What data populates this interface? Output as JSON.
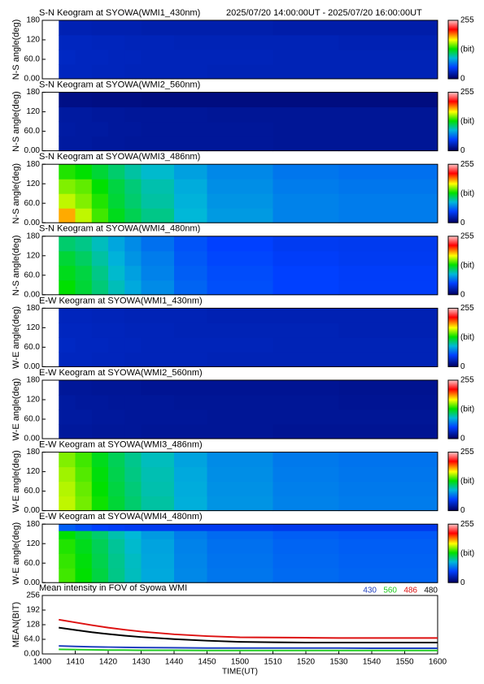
{
  "chart_data": [
    {
      "type": "heatmap",
      "title": "S-N Keogram at SYOWA(WMI1_430nm)",
      "subtitle": "2025/07/20 14:00:00UT - 2025/07/20 16:00:00UT",
      "ylabel": "N-S angle(deg)",
      "xlim": [
        1400,
        1600
      ],
      "ylim": [
        0,
        180
      ],
      "yticks": [
        {
          "value": 0,
          "label": "0.00"
        },
        {
          "value": 60,
          "label": "60.0"
        },
        120,
        180
      ],
      "x_edges": [
        1405,
        1410,
        1415,
        1420,
        1425,
        1430,
        1440,
        1450,
        1510,
        1530,
        1600
      ],
      "y_edges": [
        0,
        45,
        90,
        135,
        180
      ],
      "z": [
        [
          30,
          30,
          29,
          29,
          28,
          28,
          28,
          27,
          27,
          27
        ],
        [
          31,
          30,
          30,
          29,
          29,
          28,
          28,
          28,
          27,
          27
        ],
        [
          30,
          30,
          29,
          29,
          28,
          28,
          27,
          27,
          27,
          26
        ],
        [
          26,
          26,
          25,
          25,
          25,
          24,
          24,
          24,
          23,
          23
        ]
      ],
      "colorbar": {
        "ticks": [
          0,
          255
        ],
        "label": "(bit)"
      }
    },
    {
      "type": "heatmap",
      "title": "S-N Keogram at SYOWA(WMI2_560nm)",
      "ylabel": "N-S angle(deg)",
      "xlim": [
        1400,
        1600
      ],
      "ylim": [
        0,
        180
      ],
      "yticks": [
        {
          "value": 0,
          "label": "0.00"
        },
        {
          "value": 60,
          "label": "60.0"
        },
        120,
        180
      ],
      "x_edges": [
        1405,
        1410,
        1415,
        1420,
        1425,
        1430,
        1440,
        1450,
        1510,
        1530,
        1600
      ],
      "y_edges": [
        0,
        45,
        90,
        135,
        180
      ],
      "z": [
        [
          20,
          20,
          19,
          19,
          18,
          18,
          18,
          18,
          17,
          17
        ],
        [
          21,
          20,
          20,
          19,
          19,
          18,
          18,
          18,
          17,
          17
        ],
        [
          20,
          20,
          19,
          19,
          18,
          18,
          18,
          17,
          17,
          17
        ],
        [
          12,
          12,
          11,
          11,
          11,
          10,
          10,
          10,
          10,
          10
        ]
      ],
      "colorbar": {
        "ticks": [
          0,
          255
        ],
        "label": "(bit)"
      }
    },
    {
      "type": "heatmap",
      "title": "S-N Keogram at SYOWA(WMI3_486nm)",
      "ylabel": "N-S angle(deg)",
      "xlim": [
        1400,
        1600
      ],
      "ylim": [
        0,
        180
      ],
      "yticks": [
        {
          "value": 0,
          "label": "0.00"
        },
        {
          "value": 60,
          "label": "60.0"
        },
        120,
        180
      ],
      "x_edges": [
        1405,
        1410,
        1415,
        1420,
        1425,
        1430,
        1440,
        1450,
        1510,
        1530,
        1600
      ],
      "y_edges": [
        0,
        45,
        90,
        135,
        180
      ],
      "z": [
        [
          185,
          160,
          140,
          125,
          115,
          105,
          90,
          80,
          72,
          70
        ],
        [
          160,
          150,
          135,
          120,
          110,
          100,
          88,
          78,
          72,
          70
        ],
        [
          150,
          145,
          130,
          118,
          108,
          98,
          86,
          76,
          70,
          68
        ],
        [
          135,
          130,
          120,
          110,
          100,
          92,
          82,
          74,
          68,
          66
        ]
      ],
      "colorbar": {
        "ticks": [
          0,
          255
        ],
        "label": "(bit)"
      }
    },
    {
      "type": "heatmap",
      "title": "S-N Keogram at SYOWA(WMI4_480nm)",
      "ylabel": "N-S angle(deg)",
      "xlim": [
        1400,
        1600
      ],
      "ylim": [
        0,
        180
      ],
      "yticks": [
        {
          "value": 0,
          "label": "0.00"
        },
        {
          "value": 60,
          "label": "60.0"
        },
        120,
        180
      ],
      "x_edges": [
        1405,
        1410,
        1415,
        1420,
        1425,
        1430,
        1440,
        1450,
        1510,
        1530,
        1600
      ],
      "y_edges": [
        0,
        45,
        90,
        135,
        180
      ],
      "z": [
        [
          130,
          120,
          108,
          96,
          85,
          75,
          62,
          55,
          50,
          48
        ],
        [
          125,
          118,
          105,
          92,
          82,
          72,
          60,
          54,
          50,
          48
        ],
        [
          120,
          112,
          100,
          88,
          78,
          70,
          58,
          52,
          48,
          46
        ],
        [
          110,
          105,
          95,
          84,
          75,
          66,
          56,
          50,
          46,
          45
        ]
      ],
      "colorbar": {
        "ticks": [
          0,
          255
        ],
        "label": "(bit)"
      }
    },
    {
      "type": "heatmap",
      "title": "E-W Keogram at SYOWA(WMI1_430nm)",
      "ylabel": "W-E angle(deg)",
      "xlim": [
        1400,
        1600
      ],
      "ylim": [
        0,
        180
      ],
      "yticks": [
        {
          "value": 0,
          "label": "0.00"
        },
        {
          "value": 60,
          "label": "60.0"
        },
        120,
        180
      ],
      "x_edges": [
        1405,
        1410,
        1415,
        1420,
        1425,
        1430,
        1440,
        1450,
        1510,
        1530,
        1600
      ],
      "y_edges": [
        0,
        45,
        90,
        135,
        180
      ],
      "z": [
        [
          30,
          30,
          29,
          29,
          28,
          28,
          28,
          27,
          27,
          27
        ],
        [
          31,
          30,
          30,
          29,
          29,
          28,
          28,
          28,
          27,
          27
        ],
        [
          30,
          30,
          29,
          29,
          28,
          28,
          27,
          27,
          27,
          26
        ],
        [
          29,
          29,
          28,
          28,
          27,
          27,
          27,
          26,
          26,
          26
        ]
      ],
      "colorbar": {
        "ticks": [
          0,
          255
        ],
        "label": "(bit)"
      }
    },
    {
      "type": "heatmap",
      "title": "E-W Keogram at SYOWA(WMI2_560nm)",
      "ylabel": "W-E angle(deg)",
      "xlim": [
        1400,
        1600
      ],
      "ylim": [
        0,
        180
      ],
      "yticks": [
        {
          "value": 0,
          "label": "0.00"
        },
        {
          "value": 60,
          "label": "60.0"
        },
        120,
        180
      ],
      "x_edges": [
        1405,
        1410,
        1415,
        1420,
        1425,
        1430,
        1440,
        1450,
        1510,
        1530,
        1600
      ],
      "y_edges": [
        0,
        45,
        90,
        135,
        180
      ],
      "z": [
        [
          19,
          19,
          18,
          18,
          18,
          17,
          17,
          17,
          16,
          16
        ],
        [
          20,
          20,
          19,
          19,
          18,
          18,
          18,
          17,
          17,
          17
        ],
        [
          20,
          19,
          19,
          18,
          18,
          18,
          17,
          17,
          17,
          16
        ],
        [
          18,
          18,
          17,
          17,
          17,
          16,
          16,
          16,
          16,
          15
        ]
      ],
      "colorbar": {
        "ticks": [
          0,
          255
        ],
        "label": "(bit)"
      }
    },
    {
      "type": "heatmap",
      "title": "E-W Keogram at SYOWA(WMI3_486nm)",
      "ylabel": "W-E angle(deg)",
      "xlim": [
        1400,
        1600
      ],
      "ylim": [
        0,
        180
      ],
      "yticks": [
        {
          "value": 0,
          "label": "0.00"
        },
        {
          "value": 60,
          "label": "60.0"
        },
        120,
        180
      ],
      "x_edges": [
        1405,
        1410,
        1415,
        1420,
        1425,
        1430,
        1440,
        1450,
        1510,
        1530,
        1600
      ],
      "y_edges": [
        0,
        45,
        90,
        135,
        180
      ],
      "z": [
        [
          160,
          148,
          132,
          120,
          110,
          100,
          87,
          78,
          72,
          70
        ],
        [
          158,
          146,
          130,
          118,
          108,
          98,
          86,
          77,
          71,
          69
        ],
        [
          155,
          143,
          128,
          116,
          106,
          97,
          85,
          76,
          70,
          68
        ],
        [
          150,
          140,
          125,
          114,
          104,
          95,
          83,
          75,
          69,
          67
        ]
      ],
      "colorbar": {
        "ticks": [
          0,
          255
        ],
        "label": "(bit)"
      }
    },
    {
      "type": "heatmap",
      "title": "E-W Keogram at SYOWA(WMI4_480nm)",
      "ylabel": "W-E angle(deg)",
      "xlim": [
        1400,
        1600
      ],
      "ylim": [
        0,
        180
      ],
      "yticks": [
        {
          "value": 0,
          "label": "0.00"
        },
        {
          "value": 60,
          "label": "60.0"
        },
        120,
        180
      ],
      "x_edges": [
        1405,
        1410,
        1415,
        1420,
        1425,
        1430,
        1440,
        1450,
        1510,
        1530,
        1600
      ],
      "y_edges": [
        0,
        45,
        90,
        135,
        160,
        180
      ],
      "z": [
        [
          140,
          130,
          118,
          105,
          95,
          85,
          74,
          68,
          64,
          62
        ],
        [
          138,
          128,
          116,
          104,
          94,
          84,
          73,
          67,
          63,
          61
        ],
        [
          135,
          125,
          114,
          102,
          92,
          83,
          72,
          66,
          62,
          60
        ],
        [
          130,
          120,
          110,
          98,
          90,
          80,
          70,
          64,
          60,
          58
        ],
        [
          60,
          55,
          50,
          48,
          46,
          45,
          45,
          45,
          44,
          44
        ]
      ],
      "colorbar": {
        "ticks": [
          0,
          255
        ],
        "label": "(bit)"
      }
    },
    {
      "type": "line",
      "title": "Mean intensity in FOV of Syowa WMI",
      "ylabel": "MEAN(BIT)",
      "xlabel": "TIME(UT)",
      "xlim": [
        1400,
        1600
      ],
      "xticks": [
        1400,
        1410,
        1420,
        1430,
        1440,
        1450,
        1500,
        1510,
        1520,
        1530,
        1540,
        1550,
        1600
      ],
      "ylim": [
        0,
        256
      ],
      "yticks": [
        {
          "value": 0,
          "label": "0.00"
        },
        {
          "value": 64,
          "label": "64.0"
        },
        128,
        192,
        256
      ],
      "legend": "top-right",
      "x": [
        1405,
        1410,
        1415,
        1420,
        1425,
        1430,
        1440,
        1450,
        1500,
        1510,
        1520,
        1530,
        1540,
        1550,
        1600
      ],
      "series": [
        {
          "name": "430",
          "color": "#1f3fbf",
          "values": [
            35,
            33,
            31,
            30,
            29,
            28,
            27,
            26,
            26,
            26,
            26,
            26,
            25,
            25,
            25
          ]
        },
        {
          "name": "560",
          "color": "#22cc22",
          "values": [
            20,
            19,
            18,
            17,
            17,
            16,
            16,
            15,
            15,
            15,
            15,
            15,
            15,
            15,
            15
          ]
        },
        {
          "name": "486",
          "color": "#dd1111",
          "values": [
            150,
            138,
            126,
            115,
            106,
            98,
            86,
            78,
            73,
            72,
            71,
            70,
            70,
            70,
            70
          ]
        },
        {
          "name": "480",
          "color": "#000000",
          "values": [
            115,
            105,
            95,
            87,
            80,
            74,
            65,
            58,
            53,
            51,
            50,
            50,
            50,
            50,
            50
          ]
        }
      ]
    }
  ],
  "colormap": [
    {
      "value": 0,
      "color": "#000060"
    },
    {
      "value": 50,
      "color": "#0040ff"
    },
    {
      "value": 90,
      "color": "#00b8d8"
    },
    {
      "value": 130,
      "color": "#00e000"
    },
    {
      "value": 170,
      "color": "#ffff00"
    },
    {
      "value": 215,
      "color": "#ff0000"
    },
    {
      "value": 255,
      "color": "#ffc8c8"
    }
  ]
}
